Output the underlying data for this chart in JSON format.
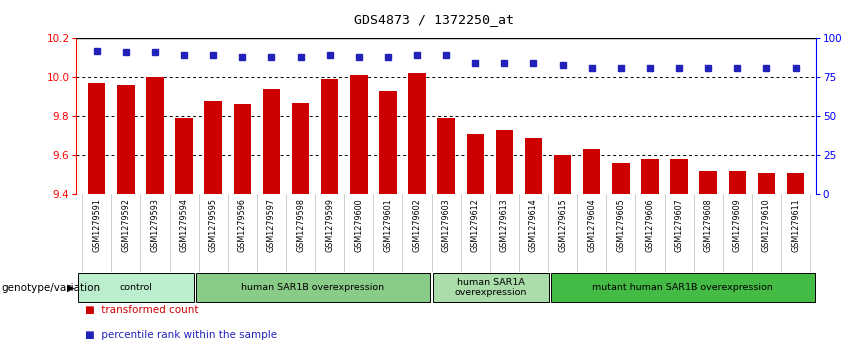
{
  "title": "GDS4873 / 1372250_at",
  "samples": [
    "GSM1279591",
    "GSM1279592",
    "GSM1279593",
    "GSM1279594",
    "GSM1279595",
    "GSM1279596",
    "GSM1279597",
    "GSM1279598",
    "GSM1279599",
    "GSM1279600",
    "GSM1279601",
    "GSM1279602",
    "GSM1279603",
    "GSM1279612",
    "GSM1279613",
    "GSM1279614",
    "GSM1279615",
    "GSM1279604",
    "GSM1279605",
    "GSM1279606",
    "GSM1279607",
    "GSM1279608",
    "GSM1279609",
    "GSM1279610",
    "GSM1279611"
  ],
  "bar_values": [
    9.97,
    9.96,
    10.0,
    9.79,
    9.88,
    9.86,
    9.94,
    9.87,
    9.99,
    10.01,
    9.93,
    10.02,
    9.79,
    9.71,
    9.73,
    9.69,
    9.6,
    9.63,
    9.56,
    9.58,
    9.58,
    9.52,
    9.52,
    9.51,
    9.51
  ],
  "percentile_values": [
    92,
    91,
    91,
    89,
    89,
    88,
    88,
    88,
    89,
    88,
    88,
    89,
    89,
    84,
    84,
    84,
    83,
    81,
    81,
    81,
    81,
    81,
    81,
    81,
    81
  ],
  "ylim_left": [
    9.4,
    10.2
  ],
  "ylim_right": [
    0,
    100
  ],
  "yticks_left": [
    9.4,
    9.6,
    9.8,
    10.0,
    10.2
  ],
  "yticks_right": [
    0,
    25,
    50,
    75,
    100
  ],
  "bar_color": "#cc0000",
  "dot_color": "#2222bb",
  "group_colors": [
    "#bbeecc",
    "#88cc88",
    "#aaddaa",
    "#44bb44"
  ],
  "group_labels": [
    "control",
    "human SAR1B overexpression",
    "human SAR1A\noverexpression",
    "mutant human SAR1B overexpression"
  ],
  "group_starts": [
    0,
    4,
    12,
    16
  ],
  "group_ends": [
    4,
    12,
    16,
    25
  ],
  "genotype_label": "genotype/variation",
  "legend_bar_label": "transformed count",
  "legend_dot_label": "percentile rank within the sample",
  "tick_bg_color": "#cccccc",
  "plot_bg_color": "#ffffff"
}
